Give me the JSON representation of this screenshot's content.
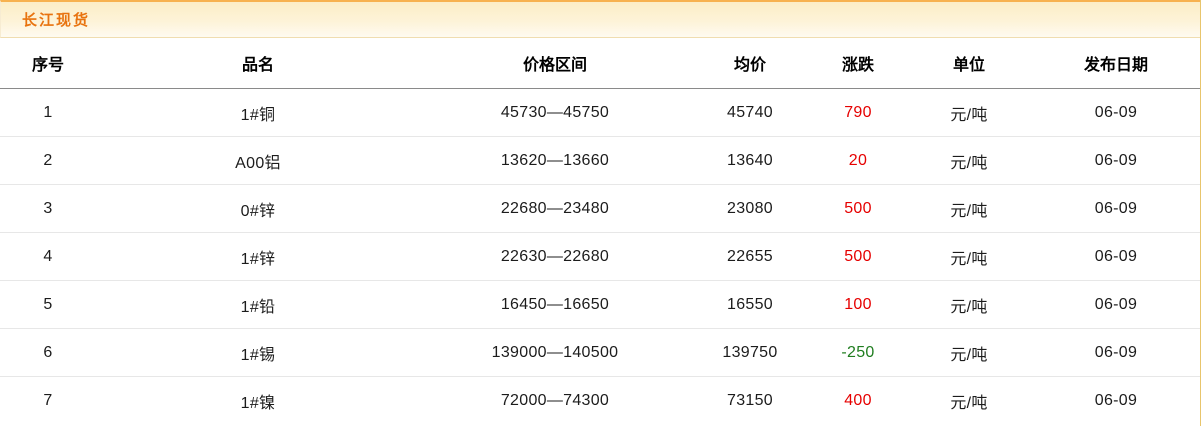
{
  "panel": {
    "title": "长江现货"
  },
  "table": {
    "columns": [
      {
        "key": "seq",
        "label": "序号"
      },
      {
        "key": "name",
        "label": "品名"
      },
      {
        "key": "range",
        "label": "价格区间"
      },
      {
        "key": "avg",
        "label": "均价"
      },
      {
        "key": "change",
        "label": "涨跌"
      },
      {
        "key": "unit",
        "label": "单位"
      },
      {
        "key": "date",
        "label": "发布日期"
      }
    ],
    "rows": [
      {
        "seq": "1",
        "name": "1#铜",
        "range": "45730—45750",
        "avg": "45740",
        "change": "790",
        "change_dir": "up",
        "unit": "元/吨",
        "date": "06-09"
      },
      {
        "seq": "2",
        "name": "A00铝",
        "range": "13620—13660",
        "avg": "13640",
        "change": "20",
        "change_dir": "up",
        "unit": "元/吨",
        "date": "06-09"
      },
      {
        "seq": "3",
        "name": "0#锌",
        "range": "22680—23480",
        "avg": "23080",
        "change": "500",
        "change_dir": "up",
        "unit": "元/吨",
        "date": "06-09"
      },
      {
        "seq": "4",
        "name": "1#锌",
        "range": "22630—22680",
        "avg": "22655",
        "change": "500",
        "change_dir": "up",
        "unit": "元/吨",
        "date": "06-09"
      },
      {
        "seq": "5",
        "name": "1#铅",
        "range": "16450—16650",
        "avg": "16550",
        "change": "100",
        "change_dir": "up",
        "unit": "元/吨",
        "date": "06-09"
      },
      {
        "seq": "6",
        "name": "1#锡",
        "range": "139000—140500",
        "avg": "139750",
        "change": "-250",
        "change_dir": "down",
        "unit": "元/吨",
        "date": "06-09"
      },
      {
        "seq": "7",
        "name": "1#镍",
        "range": "72000—74300",
        "avg": "73150",
        "change": "400",
        "change_dir": "up",
        "unit": "元/吨",
        "date": "06-09"
      }
    ]
  },
  "colors": {
    "title_text": "#e8730f",
    "titlebar_top_border": "#f7b24f",
    "panel_right_border": "#e8c56c",
    "up_change": "#e60000",
    "down_change": "#1f7d1f"
  }
}
